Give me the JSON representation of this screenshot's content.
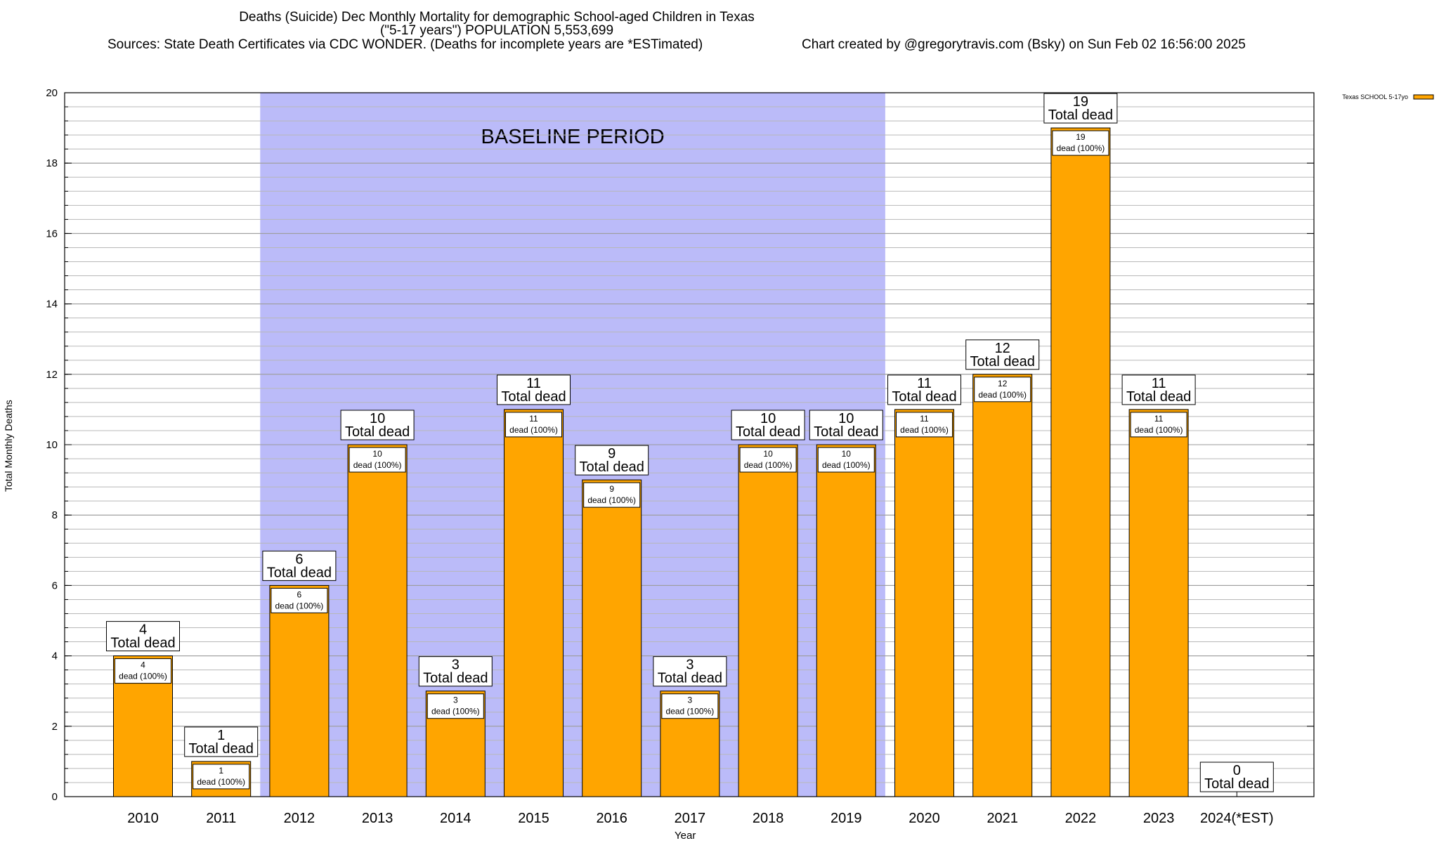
{
  "header": {
    "title_line1": "Deaths (Suicide) Dec Monthly Mortality for demographic School-aged Children in Texas",
    "title_line2": "(\"5-17 years\") POPULATION 5,553,699",
    "sources": "Sources: State Death Certificates via CDC WONDER. (Deaths for incomplete years are *ESTimated)",
    "credit": "Chart created by @gregorytravis.com (Bsky) on Sun Feb 02 16:56:00 2025"
  },
  "chart_data": {
    "type": "bar",
    "ylabel": "Total Monthly Deaths",
    "xlabel": "Year",
    "ylim": [
      0,
      20
    ],
    "yticks": [
      0,
      2,
      4,
      6,
      8,
      10,
      12,
      14,
      16,
      18,
      20
    ],
    "grid": true,
    "legend_placement": "top-right",
    "categories": [
      "2010",
      "2011",
      "2012",
      "2013",
      "2014",
      "2015",
      "2016",
      "2017",
      "2018",
      "2019",
      "2020",
      "2021",
      "2022",
      "2023",
      "2024(*EST)"
    ],
    "series": [
      {
        "name": "Texas SCHOOL 5-17yo",
        "color": "#ffa500",
        "values": [
          4,
          1,
          6,
          10,
          3,
          11,
          9,
          3,
          10,
          10,
          11,
          12,
          19,
          11,
          0
        ]
      }
    ],
    "bar_labels_total": [
      "4",
      "1",
      "6",
      "10",
      "3",
      "11",
      "9",
      "3",
      "10",
      "10",
      "11",
      "12",
      "19",
      "11",
      "0"
    ],
    "total_label_text": "Total dead",
    "bar_labels_inner": [
      "4",
      "1",
      "6",
      "10",
      "3",
      "11",
      "9",
      "3",
      "10",
      "10",
      "11",
      "12",
      "19",
      "11",
      ""
    ],
    "inner_label_text": "dead (100%)",
    "annotation": {
      "text": "BASELINE PERIOD",
      "from": "2012",
      "to": "2019",
      "color": "#bbbbf9"
    }
  }
}
